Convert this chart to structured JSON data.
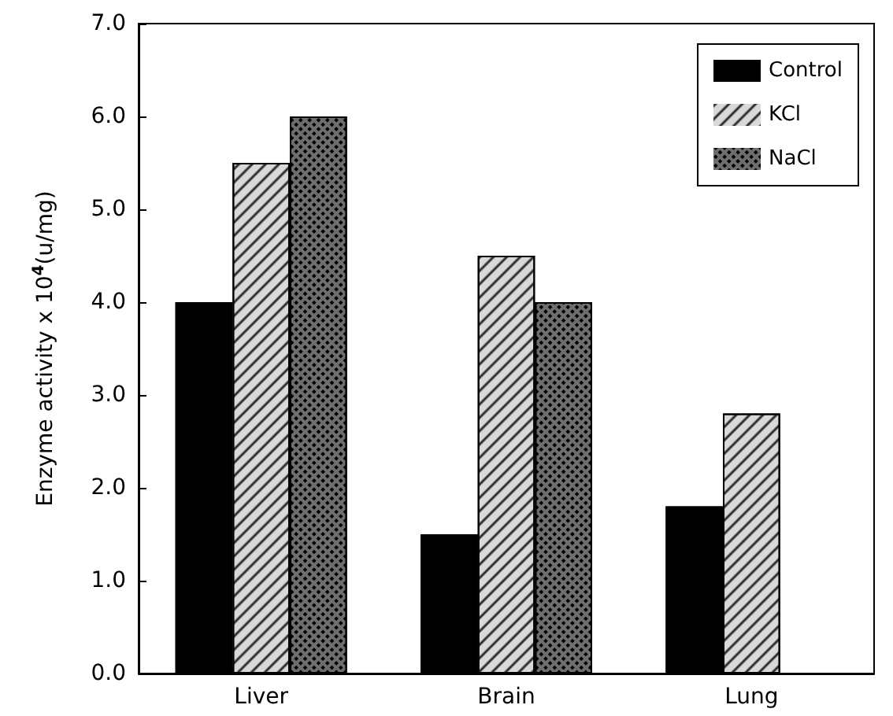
{
  "chart_data": {
    "type": "bar",
    "ylabel": "Enzyme activity x 10$^{4}$(u/mg)",
    "categories": [
      "Liver",
      "Brain",
      "Lung"
    ],
    "series": [
      {
        "name": "Control",
        "color": "#000000",
        "values": [
          4.0,
          1.5,
          1.8
        ]
      },
      {
        "name": "KCl",
        "color": "#d9d9d9",
        "values": [
          5.5,
          4.5,
          2.8
        ]
      },
      {
        "name": "NaCl",
        "color": "#6e6e6e",
        "values": [
          6.0,
          4.0,
          null
        ]
      }
    ],
    "ylim": [
      0,
      7
    ],
    "yticks": [
      {
        "value": 0,
        "label": "0.0"
      },
      {
        "value": 1,
        "label": "1.0"
      },
      {
        "value": 2,
        "label": "2.0"
      },
      {
        "value": 3,
        "label": "3.0"
      },
      {
        "value": 4,
        "label": "4.0"
      },
      {
        "value": 5,
        "label": "5.0"
      },
      {
        "value": 6,
        "label": "6.0"
      },
      {
        "value": 7,
        "label": "7.0"
      }
    ],
    "grid": false,
    "legend": "top right"
  }
}
